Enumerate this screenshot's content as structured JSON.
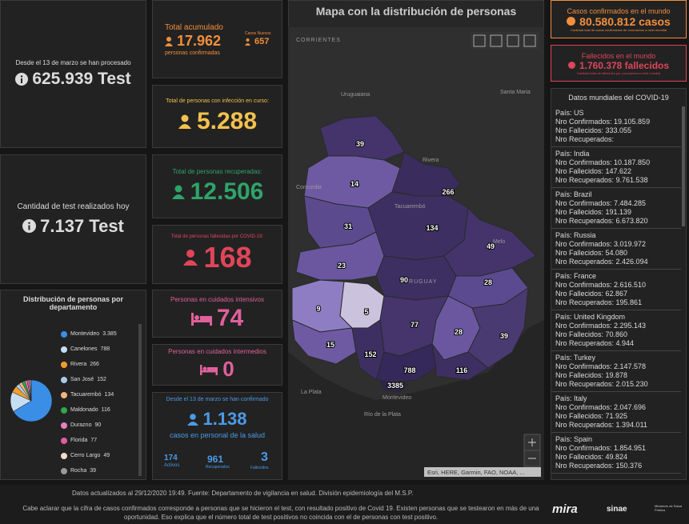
{
  "tests_total": {
    "label": "Desde el 13 de marzo se han procesado",
    "value": "625.939 Test"
  },
  "tests_today": {
    "label": "Cantidad de test realizados hoy",
    "value": "7.137 Test"
  },
  "accumulated": {
    "title": "Total acumulado",
    "value": "17.962",
    "caption": "personas confirmadas",
    "new_label": "Casos Nuevos",
    "new_value": "657"
  },
  "active": {
    "label": "Total de personas con infección en curso:",
    "value": "5.288"
  },
  "recovered": {
    "label": "Total de personas recuperadas:",
    "value": "12.506"
  },
  "deceased": {
    "label": "Total de personas fallecidas por COVID-19:",
    "value": "168"
  },
  "icu": {
    "label": "Personas en cuidados intensivos",
    "value": "74"
  },
  "intermediate": {
    "label": "Personas en cuidados intermedios",
    "value": "0"
  },
  "health_staff": {
    "label": "Desde el 13 de marzo se han confirmado",
    "value": "1.138",
    "caption": "casos en personal de la salud",
    "active": {
      "value": "174",
      "label": "Activos"
    },
    "recovered": {
      "value": "961",
      "label": "Recuperados"
    },
    "deceased": {
      "value": "3",
      "label": "Fallecidos"
    }
  },
  "distribution": {
    "title": "Distribución de personas por departamento",
    "items": [
      {
        "name": "Montevideo",
        "value": 3385,
        "value_label": "3.385",
        "color": "#3a8ee6"
      },
      {
        "name": "Canelones",
        "value": 788,
        "value_label": "788",
        "color": "#c6def2"
      },
      {
        "name": "Rivera",
        "value": 266,
        "value_label": "266",
        "color": "#f39c2c"
      },
      {
        "name": "San José",
        "value": 152,
        "value_label": "152",
        "color": "#a9cbe9"
      },
      {
        "name": "Tacuarembó",
        "value": 134,
        "value_label": "134",
        "color": "#f3b47a"
      },
      {
        "name": "Maldonado",
        "value": 116,
        "value_label": "116",
        "color": "#2ea84c"
      },
      {
        "name": "Durazno",
        "value": 90,
        "value_label": "90",
        "color": "#e77fc0"
      },
      {
        "name": "Florida",
        "value": 77,
        "value_label": "77",
        "color": "#df5ea3"
      },
      {
        "name": "Cerro Largo",
        "value": 49,
        "value_label": "49",
        "color": "#f1dcc8"
      },
      {
        "name": "Rocha",
        "value": 39,
        "value_label": "39",
        "color": "#9a9a9a"
      }
    ]
  },
  "map": {
    "title": "Mapa con la distribución de personas",
    "places": [
      "CORRIENTES",
      "Uruguaiana",
      "Santa Maria",
      "Rivera",
      "Concordia",
      "Tacuarembó",
      "Melo",
      "URUGUAY",
      "Montevideo",
      "La Plata",
      "Río de la Plata"
    ],
    "departments": [
      "39",
      "14",
      "266",
      "31",
      "134",
      "49",
      "23",
      "90",
      "28",
      "9",
      "5",
      "77",
      "28",
      "39",
      "15",
      "152",
      "788",
      "116",
      "3385"
    ],
    "attribution": "Esri, HERE, Garmin, FAO, NOAA, ..."
  },
  "world_cases": {
    "title": "Casos confirmados en el mundo",
    "value": "80.580.812 casos",
    "caption": "Cantidad total de casos confirmados de coronavirus a nivel mundial"
  },
  "world_deaths": {
    "title": "Fallecidos en el mundo",
    "value": "1.760.378 fallecidos",
    "caption": "Cantidad total de fallecidos por coronavirus a nivel mundial"
  },
  "world_data": {
    "title": "Datos mundiales del COVID-19",
    "countries": [
      [
        "País: US",
        "Nro Confirmados: 19.105.859",
        "Nro Fallecidos: 333.055",
        "Nro Recuperados:"
      ],
      [
        "País: India",
        "Nro Confirmados: 10.187.850",
        "Nro Fallecidos: 147.622",
        "Nro Recuperados: 9.761.538"
      ],
      [
        "País: Brazil",
        "Nro Confirmados: 7.484.285",
        "Nro Fallecidos: 191.139",
        "Nro Recuperados: 6.673.820"
      ],
      [
        "País: Russia",
        "Nro Confirmados: 3.019.972",
        "Nro Fallecidos: 54.080",
        "Nro Recuperados: 2.426.094"
      ],
      [
        "País: France",
        "Nro Confirmados: 2.616.510",
        "Nro Fallecidos: 62.867",
        "Nro Recuperados: 195.861"
      ],
      [
        "País: United Kingdom",
        "Nro Confirmados: 2.295.143",
        "Nro Fallecidos: 70.860",
        "Nro Recuperados: 4.944"
      ],
      [
        "País: Turkey",
        "Nro Confirmados: 2.147.578",
        "Nro Fallecidos: 19.878",
        "Nro Recuperados: 2.015.230"
      ],
      [
        "País: Italy",
        "Nro Confirmados: 2.047.696",
        "Nro Fallecidos: 71.925",
        "Nro Recuperados: 1.394.011"
      ],
      [
        "País: Spain",
        "Nro Confirmados: 1.854.951",
        "Nro Fallecidos: 49.824",
        "Nro Recuperados: 150.376"
      ]
    ]
  },
  "footer": {
    "updated": "Datos actualizados al 29/12/2020 19:49. Fuente: Departamento de vigilancia en salud. División epidemiología del M.S.P.",
    "note": "Cabe aclarar que la cifra de casos confirmados corresponde a personas que se hicieron el test, con resultado positivo de Covid 19. Existen personas que se testearon en más de una oportunidad. Eso explica que el número total de test positivos no coincida con el de personas con test positivo."
  },
  "logos": [
    "mira",
    "sinae",
    "Ministerio de Salud Pública"
  ]
}
